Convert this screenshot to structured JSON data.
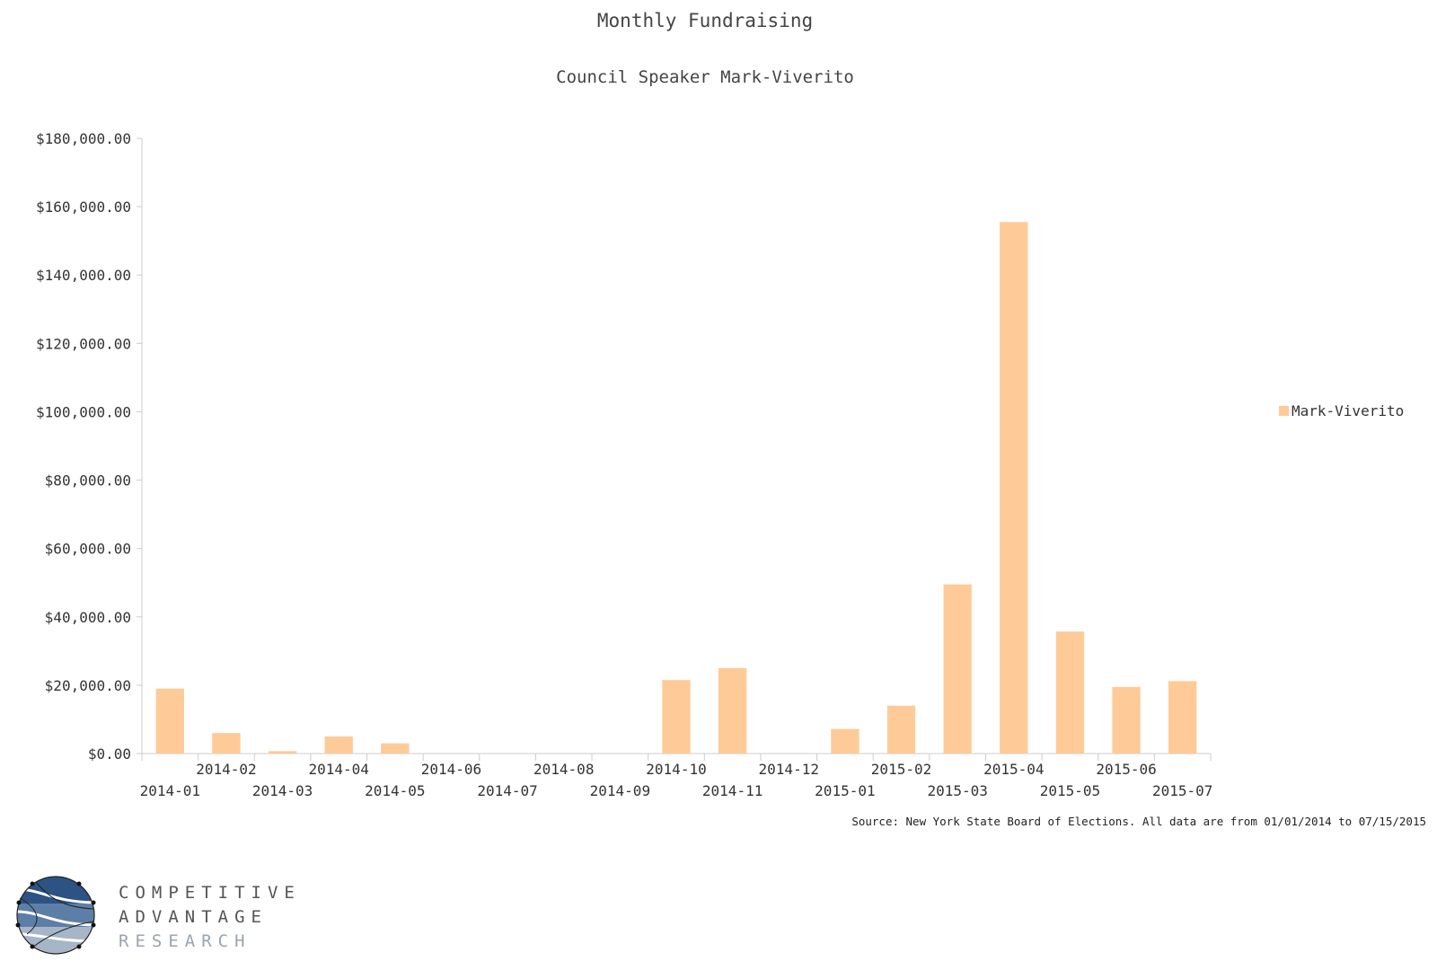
{
  "chart_data": {
    "type": "bar",
    "title": "Monthly Fundraising",
    "subtitle": "Council Speaker Mark-Viverito",
    "categories": [
      "2014-01",
      "2014-02",
      "2014-03",
      "2014-04",
      "2014-05",
      "2014-06",
      "2014-07",
      "2014-08",
      "2014-09",
      "2014-10",
      "2014-11",
      "2014-12",
      "2015-01",
      "2015-02",
      "2015-03",
      "2015-04",
      "2015-05",
      "2015-06",
      "2015-07"
    ],
    "series": [
      {
        "name": "Mark-Viverito",
        "values": [
          19000,
          6000,
          700,
          5000,
          3000,
          0,
          0,
          0,
          0,
          21500,
          25000,
          0,
          7200,
          14000,
          49500,
          155500,
          35700,
          19500,
          21200
        ]
      }
    ],
    "ylim": [
      0,
      180000
    ],
    "yticks": [
      0,
      20000,
      40000,
      60000,
      80000,
      100000,
      120000,
      140000,
      160000,
      180000
    ],
    "ytick_labels": [
      "$0.00",
      "$20,000.00",
      "$40,000.00",
      "$60,000.00",
      "$80,000.00",
      "$100,000.00",
      "$120,000.00",
      "$140,000.00",
      "$160,000.00",
      "$180,000.00"
    ],
    "grid": false,
    "legend": "right",
    "bar_color": "#fecb98",
    "source_note": "Source: New York State Board of Elections.  All data are from 01/01/2014 to 07/15/2015"
  },
  "logo": {
    "line1": "COMPETITIVE",
    "line2": "ADVANTAGE",
    "line3": "RESEARCH",
    "colors": {
      "dark": "#2d5384",
      "mid": "#5d7ea6",
      "light": "#a6b6c8",
      "text": "#555555",
      "text_light": "#9aa4ae"
    }
  }
}
